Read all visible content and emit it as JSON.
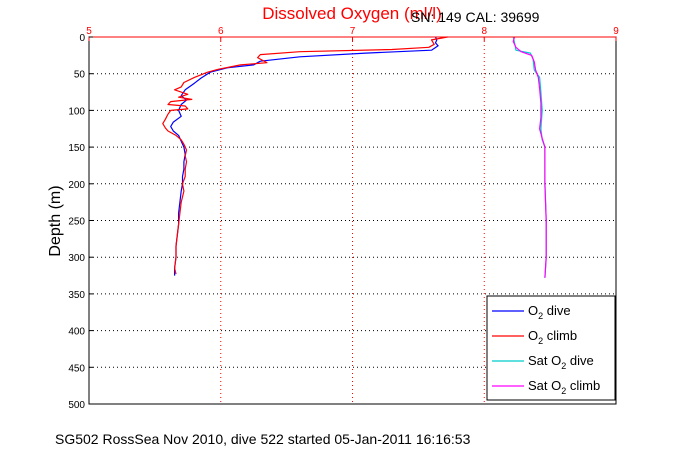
{
  "figure": {
    "title": "Dissolved Oxygen (ml/l)",
    "serial": "SN: 149  CAL: 39699",
    "footer": "SG502 RossSea Nov 2010, dive 522 started 05-Jan-2011 16:16:53"
  },
  "chart_data": {
    "type": "line",
    "title": "Dissolved Oxygen (ml/l)",
    "ylabel": "Depth (m)",
    "xlabel": "",
    "xlim": [
      5,
      9
    ],
    "ylim": [
      0,
      500
    ],
    "y_reversed": true,
    "x_axis_position": "top",
    "xticks": [
      "5",
      "6",
      "7",
      "8",
      "9"
    ],
    "yticks": [
      "0",
      "50",
      "100",
      "150",
      "200",
      "250",
      "300",
      "350",
      "400",
      "450",
      "500"
    ],
    "grid": "dotted",
    "legend_position": "bottom-right",
    "series": [
      {
        "name": "O2 dive",
        "legend": {
          "pre": "O",
          "sub": "2",
          "post": " dive"
        },
        "color": "#0000ff",
        "points": [
          [
            7.63,
            0
          ],
          [
            7.64,
            4
          ],
          [
            7.63,
            8
          ],
          [
            7.65,
            12
          ],
          [
            7.6,
            18
          ],
          [
            7.1,
            22
          ],
          [
            6.6,
            27
          ],
          [
            6.3,
            33
          ],
          [
            6.25,
            38
          ],
          [
            6.05,
            42
          ],
          [
            5.92,
            48
          ],
          [
            5.85,
            56
          ],
          [
            5.8,
            63
          ],
          [
            5.73,
            72
          ],
          [
            5.7,
            80
          ],
          [
            5.74,
            86
          ],
          [
            5.7,
            92
          ],
          [
            5.68,
            100
          ],
          [
            5.7,
            108
          ],
          [
            5.64,
            116
          ],
          [
            5.62,
            122
          ],
          [
            5.64,
            128
          ],
          [
            5.68,
            134
          ],
          [
            5.7,
            142
          ],
          [
            5.72,
            150
          ],
          [
            5.73,
            160
          ],
          [
            5.72,
            170
          ],
          [
            5.72,
            180
          ],
          [
            5.71,
            190
          ],
          [
            5.71,
            200
          ],
          [
            5.7,
            210
          ],
          [
            5.69,
            225
          ],
          [
            5.68,
            240
          ],
          [
            5.68,
            255
          ],
          [
            5.67,
            270
          ],
          [
            5.66,
            285
          ],
          [
            5.66,
            300
          ],
          [
            5.65,
            315
          ],
          [
            5.65,
            325
          ]
        ]
      },
      {
        "name": "O2 climb",
        "legend": {
          "pre": "O",
          "sub": "2",
          "post": " climb"
        },
        "color": "#ff0000",
        "points": [
          [
            7.66,
            2
          ],
          [
            7.72,
            0
          ],
          [
            7.6,
            4
          ],
          [
            7.62,
            10
          ],
          [
            7.58,
            14
          ],
          [
            7.3,
            17
          ],
          [
            6.6,
            20
          ],
          [
            6.3,
            24
          ],
          [
            6.28,
            28
          ],
          [
            6.35,
            35
          ],
          [
            6.15,
            38
          ],
          [
            5.98,
            44
          ],
          [
            5.9,
            48
          ],
          [
            5.8,
            55
          ],
          [
            5.72,
            62
          ],
          [
            5.7,
            68
          ],
          [
            5.65,
            72
          ],
          [
            5.75,
            78
          ],
          [
            5.68,
            82
          ],
          [
            5.78,
            85
          ],
          [
            5.62,
            88
          ],
          [
            5.6,
            92
          ],
          [
            5.73,
            94
          ],
          [
            5.75,
            98
          ],
          [
            5.62,
            100
          ],
          [
            5.6,
            105
          ],
          [
            5.58,
            112
          ],
          [
            5.56,
            118
          ],
          [
            5.58,
            124
          ],
          [
            5.6,
            128
          ],
          [
            5.66,
            134
          ],
          [
            5.7,
            140
          ],
          [
            5.72,
            146
          ],
          [
            5.74,
            154
          ],
          [
            5.73,
            162
          ],
          [
            5.74,
            170
          ],
          [
            5.73,
            180
          ],
          [
            5.73,
            190
          ],
          [
            5.71,
            200
          ],
          [
            5.72,
            210
          ],
          [
            5.7,
            225
          ],
          [
            5.69,
            240
          ],
          [
            5.68,
            255
          ],
          [
            5.67,
            270
          ],
          [
            5.66,
            285
          ],
          [
            5.66,
            300
          ],
          [
            5.65,
            315
          ],
          [
            5.66,
            323
          ]
        ]
      },
      {
        "name": "Sat O2 dive",
        "legend": {
          "pre": "Sat O",
          "sub": "2",
          "post": " dive"
        },
        "color": "#00cccc",
        "points": [
          [
            8.22,
            0
          ],
          [
            8.23,
            8
          ],
          [
            8.24,
            18
          ],
          [
            8.35,
            22
          ],
          [
            8.37,
            30
          ],
          [
            8.38,
            45
          ],
          [
            8.42,
            55
          ],
          [
            8.43,
            75
          ],
          [
            8.44,
            100
          ],
          [
            8.43,
            125
          ],
          [
            8.44,
            140
          ],
          [
            8.46,
            150
          ],
          [
            8.46,
            200
          ],
          [
            8.47,
            250
          ],
          [
            8.47,
            300
          ],
          [
            8.46,
            328
          ]
        ]
      },
      {
        "name": "Sat O2 climb",
        "legend": {
          "pre": "Sat O",
          "sub": "2",
          "post": " climb"
        },
        "color": "#ff00ff",
        "points": [
          [
            8.23,
            0
          ],
          [
            8.22,
            6
          ],
          [
            8.24,
            14
          ],
          [
            8.28,
            20
          ],
          [
            8.36,
            25
          ],
          [
            8.38,
            34
          ],
          [
            8.39,
            45
          ],
          [
            8.41,
            55
          ],
          [
            8.42,
            70
          ],
          [
            8.43,
            90
          ],
          [
            8.43,
            110
          ],
          [
            8.42,
            125
          ],
          [
            8.44,
            138
          ],
          [
            8.46,
            150
          ],
          [
            8.46,
            200
          ],
          [
            8.47,
            250
          ],
          [
            8.47,
            300
          ],
          [
            8.46,
            328
          ]
        ]
      }
    ]
  }
}
